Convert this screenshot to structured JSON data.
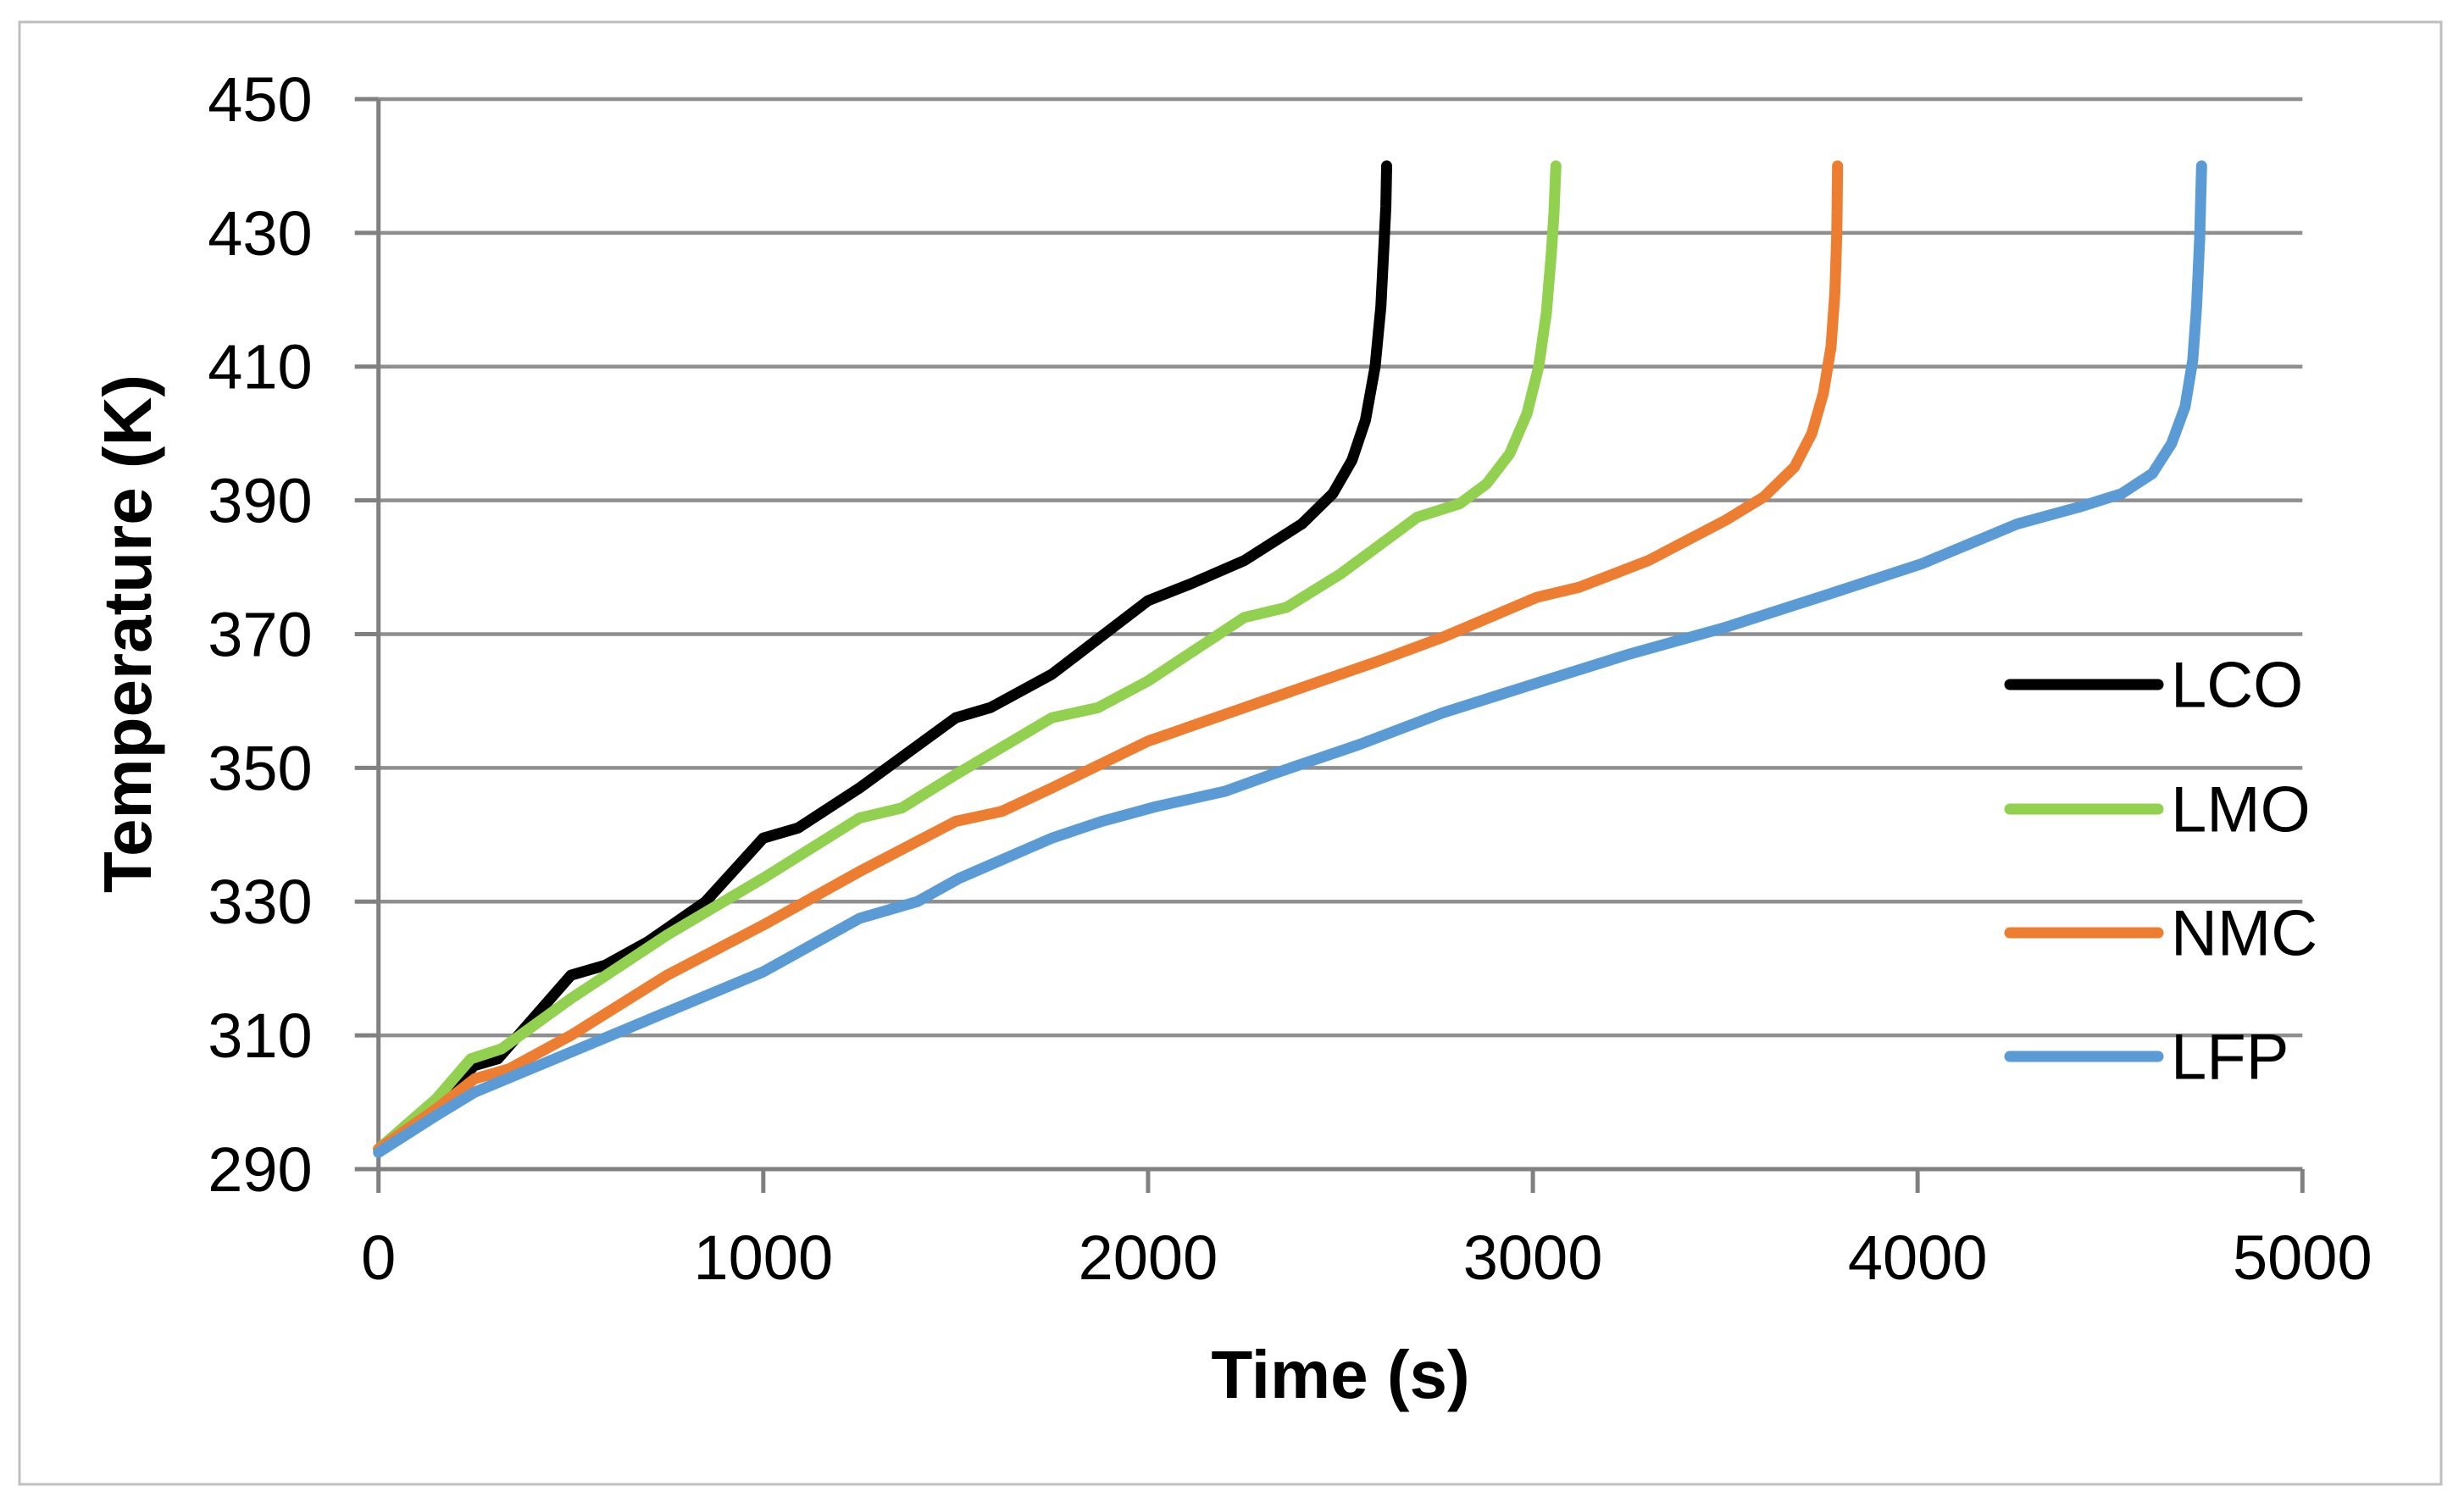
{
  "figure": {
    "background": "#FFFFFF",
    "border_color": "#BFBFBF"
  },
  "chart_data": {
    "type": "line",
    "title": "",
    "xlabel": "Time (s)",
    "ylabel": "Temperature (K)",
    "xlim": [
      0,
      5000
    ],
    "ylim": [
      290,
      450
    ],
    "xticks": [
      0,
      1000,
      2000,
      3000,
      4000,
      5000
    ],
    "yticks": [
      290,
      310,
      330,
      350,
      370,
      390,
      410,
      430,
      450
    ],
    "grid": "horizontal-only",
    "gridline_color": "#8F8F8F",
    "axis_color": "#808080",
    "legend_position": "inside-right",
    "legend_entries": [
      "LCO",
      "LMO",
      "NMC",
      "LFP"
    ],
    "series": [
      {
        "name": "LCO",
        "color": "#000000",
        "points": [
          [
            0,
            293
          ],
          [
            150,
            300
          ],
          [
            250,
            305.5
          ],
          [
            310,
            306.5
          ],
          [
            500,
            319
          ],
          [
            590,
            320.5
          ],
          [
            700,
            324
          ],
          [
            850,
            330
          ],
          [
            1000,
            339.5
          ],
          [
            1090,
            341
          ],
          [
            1250,
            347
          ],
          [
            1500,
            357.5
          ],
          [
            1590,
            359
          ],
          [
            1750,
            364
          ],
          [
            2000,
            375
          ],
          [
            2110,
            377.5
          ],
          [
            2250,
            381
          ],
          [
            2400,
            386.5
          ],
          [
            2480,
            391
          ],
          [
            2530,
            396
          ],
          [
            2565,
            402
          ],
          [
            2590,
            410
          ],
          [
            2605,
            419
          ],
          [
            2613,
            428
          ],
          [
            2618,
            434
          ],
          [
            2620,
            440
          ]
        ]
      },
      {
        "name": "LMO",
        "color": "#92D050",
        "points": [
          [
            0,
            293
          ],
          [
            150,
            300.5
          ],
          [
            240,
            306.5
          ],
          [
            320,
            308
          ],
          [
            500,
            315.5
          ],
          [
            750,
            325
          ],
          [
            1000,
            333.5
          ],
          [
            1250,
            342.5
          ],
          [
            1360,
            344
          ],
          [
            1500,
            349
          ],
          [
            1750,
            357.5
          ],
          [
            1870,
            359
          ],
          [
            2000,
            363
          ],
          [
            2250,
            372.5
          ],
          [
            2360,
            374
          ],
          [
            2500,
            379
          ],
          [
            2700,
            387.5
          ],
          [
            2810,
            389.5
          ],
          [
            2880,
            392.5
          ],
          [
            2940,
            397
          ],
          [
            2985,
            403
          ],
          [
            3015,
            410
          ],
          [
            3035,
            418
          ],
          [
            3048,
            427
          ],
          [
            3055,
            433
          ],
          [
            3060,
            440
          ]
        ]
      },
      {
        "name": "NMC",
        "color": "#ED7D31",
        "points": [
          [
            0,
            293
          ],
          [
            150,
            299
          ],
          [
            250,
            303.5
          ],
          [
            340,
            305
          ],
          [
            500,
            310
          ],
          [
            750,
            319
          ],
          [
            1000,
            326.5
          ],
          [
            1250,
            334.5
          ],
          [
            1500,
            342
          ],
          [
            1620,
            343.5
          ],
          [
            1750,
            347
          ],
          [
            2000,
            354
          ],
          [
            2325,
            360.5
          ],
          [
            2600,
            366
          ],
          [
            2765,
            369.5
          ],
          [
            3010,
            375.5
          ],
          [
            3120,
            377
          ],
          [
            3300,
            381
          ],
          [
            3500,
            387
          ],
          [
            3600,
            390.5
          ],
          [
            3680,
            395
          ],
          [
            3725,
            400
          ],
          [
            3755,
            406
          ],
          [
            3775,
            413
          ],
          [
            3785,
            421
          ],
          [
            3790,
            430
          ],
          [
            3792,
            440
          ]
        ]
      },
      {
        "name": "LFP",
        "color": "#5B9BD5",
        "points": [
          [
            0,
            292.5
          ],
          [
            150,
            298
          ],
          [
            250,
            301.5
          ],
          [
            500,
            307.5
          ],
          [
            750,
            313.5
          ],
          [
            1000,
            319.5
          ],
          [
            1250,
            327.5
          ],
          [
            1400,
            330
          ],
          [
            1510,
            333.5
          ],
          [
            1750,
            339.5
          ],
          [
            1880,
            342
          ],
          [
            2020,
            344.2
          ],
          [
            2200,
            346.5
          ],
          [
            2330,
            349.2
          ],
          [
            2550,
            353.5
          ],
          [
            2765,
            358.2
          ],
          [
            3000,
            362.5
          ],
          [
            3250,
            367
          ],
          [
            3500,
            371
          ],
          [
            3760,
            375.8
          ],
          [
            4010,
            380.5
          ],
          [
            4260,
            386.5
          ],
          [
            4420,
            389
          ],
          [
            4530,
            391
          ],
          [
            4610,
            394
          ],
          [
            4660,
            398.5
          ],
          [
            4695,
            404
          ],
          [
            4715,
            411
          ],
          [
            4725,
            419
          ],
          [
            4733,
            429
          ],
          [
            4738,
            440
          ]
        ]
      }
    ]
  }
}
